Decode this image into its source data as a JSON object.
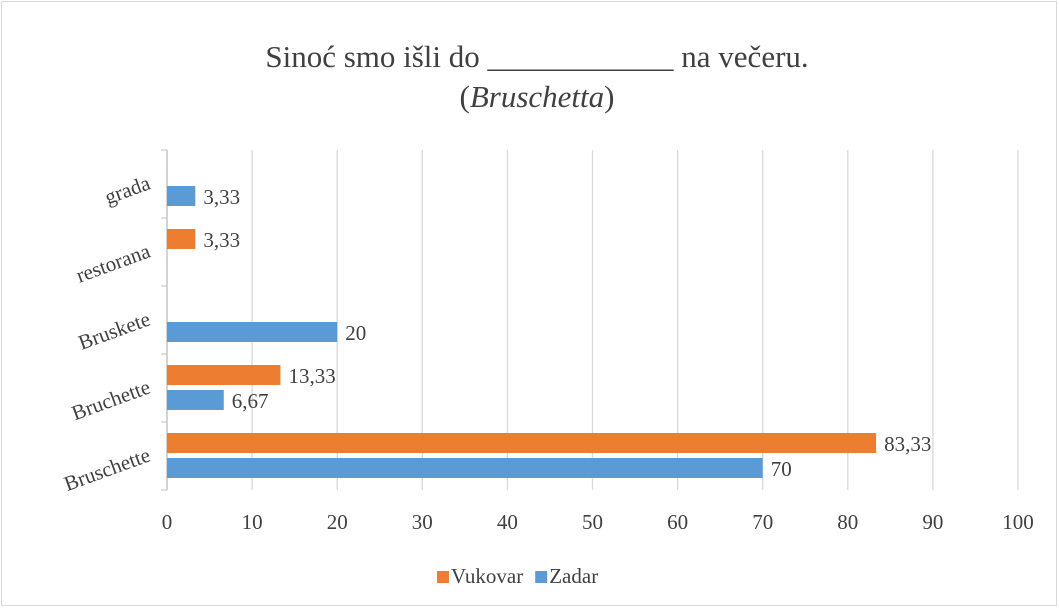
{
  "chart_data": {
    "type": "hbar",
    "title": "Sinoć smo išli do ____________ na večeru.",
    "subtitle_parts": [
      "(",
      "Bruschetta",
      ")"
    ],
    "categories": [
      "Bruschette",
      "Bruchette",
      "Bruskete",
      "restorana",
      "grada"
    ],
    "series": [
      {
        "name": "Vukovar",
        "color": "#ed7d31",
        "values": [
          83.33,
          13.33,
          null,
          3.33,
          null
        ],
        "value_labels": [
          "83,33",
          "13,33",
          null,
          "3,33",
          null
        ]
      },
      {
        "name": "Zadar",
        "color": "#5b9bd5",
        "values": [
          70,
          6.67,
          20,
          null,
          3.33
        ],
        "value_labels": [
          "70",
          "6,67",
          "20",
          null,
          "3,33"
        ]
      }
    ],
    "xlim": [
      0,
      100
    ],
    "xticks": [
      0,
      10,
      20,
      30,
      40,
      50,
      60,
      70,
      80,
      90,
      100
    ],
    "grid": true,
    "legend": "bottom"
  }
}
